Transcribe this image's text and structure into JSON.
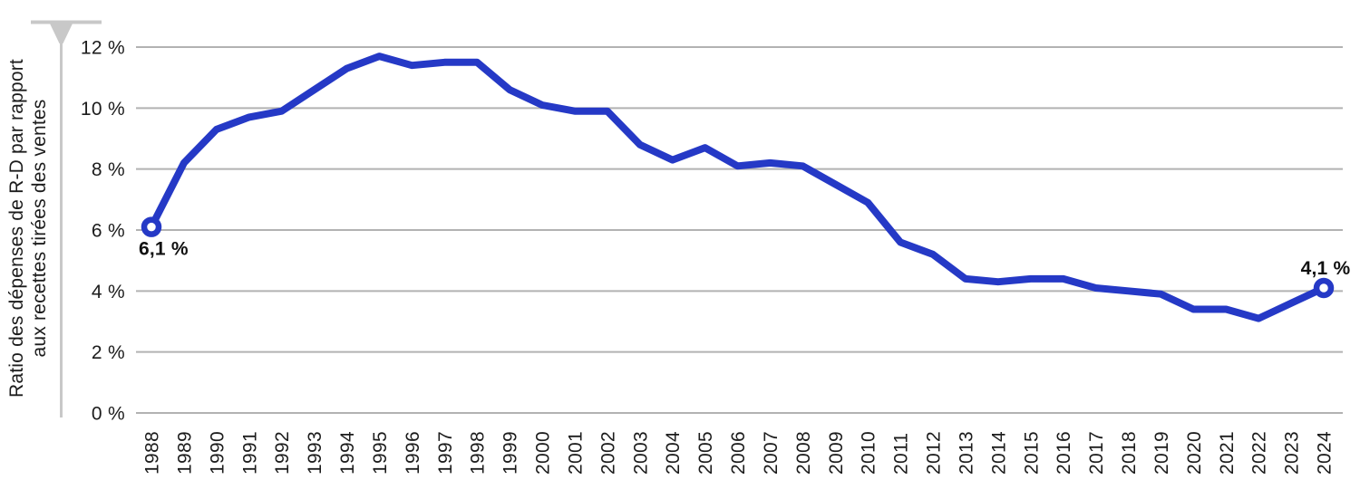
{
  "colors": {
    "accent": "#2539c6",
    "grid": "#b2b2b2",
    "axis": "#c8c8c8",
    "text": "#1c1c1c"
  },
  "y_axis_title": {
    "line1": "Ratio des dépenses de R-D par rapport",
    "line2": "aux recettes tirées des ventes"
  },
  "chart_data": {
    "type": "line",
    "title": "",
    "xlabel": "",
    "ylabel": "Ratio des dépenses de R-D par rapport aux recettes tirées des ventes",
    "x": [
      1988,
      1989,
      1990,
      1991,
      1992,
      1993,
      1994,
      1995,
      1996,
      1997,
      1998,
      1999,
      2000,
      2001,
      2002,
      2003,
      2004,
      2005,
      2006,
      2007,
      2008,
      2009,
      2010,
      2011,
      2012,
      2013,
      2014,
      2015,
      2016,
      2017,
      2018,
      2019,
      2020,
      2021,
      2022,
      2023,
      2024
    ],
    "values": [
      6.1,
      8.2,
      9.3,
      9.7,
      9.9,
      10.6,
      11.3,
      11.7,
      11.4,
      11.5,
      11.5,
      10.6,
      10.1,
      9.9,
      9.9,
      8.8,
      8.3,
      8.7,
      8.1,
      8.2,
      8.1,
      7.5,
      6.9,
      5.6,
      5.2,
      4.4,
      4.3,
      4.4,
      4.4,
      4.1,
      4.0,
      3.9,
      3.4,
      3.4,
      3.1,
      3.6,
      4.1
    ],
    "ylim": [
      0,
      12
    ],
    "y_ticks": [
      {
        "label": "12 %",
        "value": 12
      },
      {
        "label": "10 %",
        "value": 10
      },
      {
        "label": "8 %",
        "value": 8
      },
      {
        "label": "6 %",
        "value": 6
      },
      {
        "label": "4 %",
        "value": 4
      },
      {
        "label": "2 %",
        "value": 2
      },
      {
        "label": "0 %",
        "value": 0
      }
    ],
    "grid": true,
    "legend": false,
    "first_point": {
      "label": "6,1 %",
      "value": 6.1,
      "year": 1988
    },
    "last_point": {
      "label": "4,1 %",
      "value": 4.1,
      "year": 2024
    }
  }
}
